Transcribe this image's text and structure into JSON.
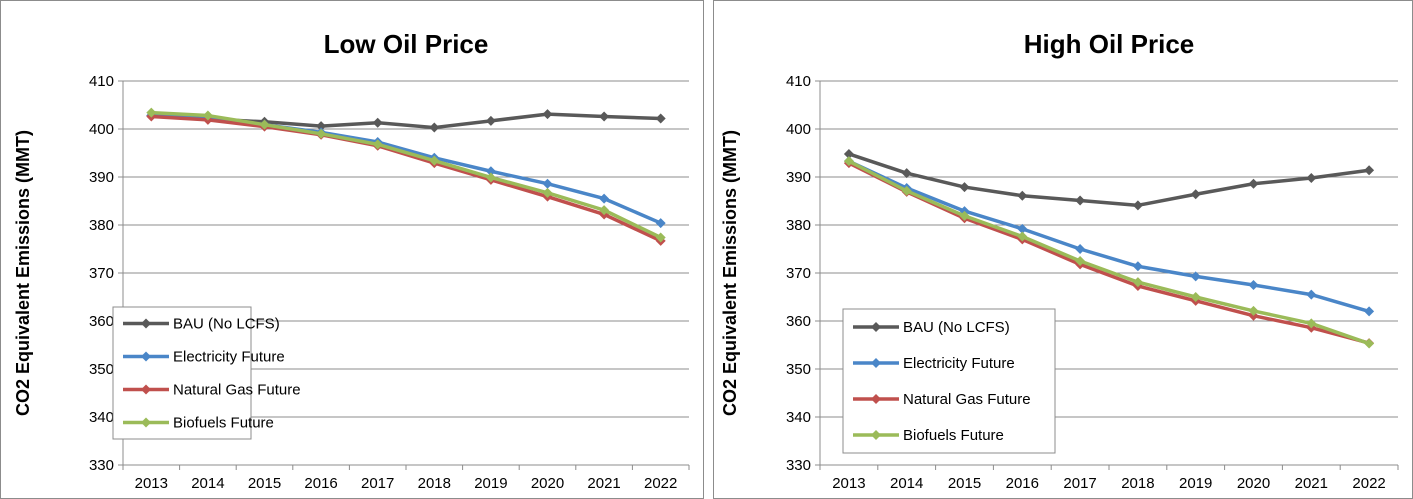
{
  "chart_data": [
    {
      "type": "line",
      "title": "Low Oil Price",
      "xlabel": "",
      "ylabel": "CO2 Equivalent Emissions (MMT)",
      "categories": [
        "2013",
        "2014",
        "2015",
        "2016",
        "2017",
        "2018",
        "2019",
        "2020",
        "2021",
        "2022"
      ],
      "ylim": [
        330,
        410
      ],
      "yticks": [
        330,
        340,
        350,
        360,
        370,
        380,
        390,
        400,
        410
      ],
      "grid": true,
      "legend_position": "bottom-left",
      "series": [
        {
          "name": "BAU (No LCFS)",
          "color": "#595959",
          "values": [
            402.8,
            402.1,
            401.5,
            400.6,
            401.3,
            400.3,
            401.7,
            403.1,
            402.6,
            402.2
          ]
        },
        {
          "name": "Electricity Future",
          "color": "#4a86c8",
          "values": [
            402.8,
            402.1,
            400.9,
            399.3,
            397.3,
            394.0,
            391.2,
            388.6,
            385.5,
            380.4
          ]
        },
        {
          "name": "Natural Gas Future",
          "color": "#c0504d",
          "values": [
            402.6,
            401.9,
            400.5,
            398.8,
            396.5,
            392.9,
            389.4,
            385.9,
            382.2,
            376.7
          ]
        },
        {
          "name": "Biofuels Future",
          "color": "#9bbb59",
          "values": [
            403.4,
            402.8,
            400.9,
            399.0,
            396.8,
            393.4,
            389.9,
            386.7,
            383.1,
            377.4
          ]
        }
      ]
    },
    {
      "type": "line",
      "title": "High Oil Price",
      "xlabel": "",
      "ylabel": "CO2 Equivalent Emissions (MMT)",
      "categories": [
        "2013",
        "2014",
        "2015",
        "2016",
        "2017",
        "2018",
        "2019",
        "2020",
        "2021",
        "2022"
      ],
      "ylim": [
        330,
        410
      ],
      "yticks": [
        330,
        340,
        350,
        360,
        370,
        380,
        390,
        400,
        410
      ],
      "grid": true,
      "legend_position": "bottom-left",
      "series": [
        {
          "name": "BAU (No LCFS)",
          "color": "#595959",
          "values": [
            394.8,
            390.8,
            387.9,
            386.1,
            385.1,
            384.1,
            386.4,
            388.6,
            389.8,
            391.4
          ]
        },
        {
          "name": "Electricity Future",
          "color": "#4a86c8",
          "values": [
            393.3,
            387.7,
            382.9,
            379.2,
            375.0,
            371.4,
            369.3,
            367.5,
            365.5,
            362.0
          ]
        },
        {
          "name": "Natural Gas Future",
          "color": "#c0504d",
          "values": [
            392.9,
            386.9,
            381.4,
            377.0,
            371.8,
            367.3,
            364.2,
            361.1,
            358.6,
            355.4
          ]
        },
        {
          "name": "Biofuels Future",
          "color": "#9bbb59",
          "values": [
            393.3,
            387.1,
            381.9,
            377.6,
            372.5,
            368.1,
            365.0,
            362.1,
            359.5,
            355.3
          ]
        }
      ]
    }
  ]
}
